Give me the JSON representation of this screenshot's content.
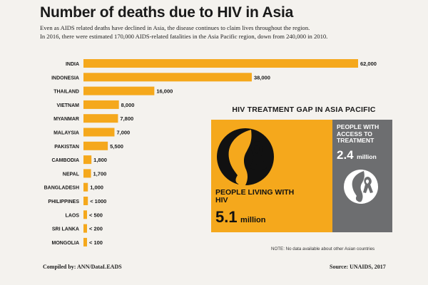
{
  "title": "Number of deaths due to HIV in Asia",
  "subtitle_line1": "Even as AIDS related deaths have declined in Asia, the disease continues to claim lives throughout the region.",
  "subtitle_line2": "In 2016, there were estimated 170,000 AIDS-related fatalities in the Asia Pacific region, down from 240,000 in 2010.",
  "colors": {
    "bar": "#f5a81c",
    "gray_box": "#6d6e70"
  },
  "chart_data": {
    "type": "bar",
    "orientation": "horizontal",
    "categories": [
      "INDIA",
      "INDONESIA",
      "THAILAND",
      "VIETNAM",
      "MYANMAR",
      "MALAYSIA",
      "PAKISTAN",
      "CAMBODIA",
      "NEPAL",
      "BANGLADESH",
      "PHILIPPINES",
      "LAOS",
      "SRI LANKA",
      "MONGOLIA"
    ],
    "values": [
      62000,
      38000,
      16000,
      8000,
      7800,
      7000,
      5500,
      1800,
      1700,
      1000,
      1000,
      500,
      200,
      100
    ],
    "labels": [
      "62,000",
      "38,000",
      "16,000",
      "8,000",
      "7,800",
      "7,000",
      "5,500",
      "1,800",
      "1,700",
      "1,000",
      "< 1000",
      "< 500",
      "< 200",
      "< 100"
    ],
    "xlim": [
      0,
      62000
    ],
    "grid": false
  },
  "gap": {
    "title": "HIV TREATMENT GAP IN ASIA PACIFIC",
    "plwh_label": "PEOPLE LIVING WITH HIV",
    "plwh_value": "5.1",
    "plwh_unit": "million",
    "access_label": "PEOPLE WITH ACCESS TO TREATMENT",
    "access_value": "2.4",
    "access_unit": "million",
    "icon": "ribbon-face-icon"
  },
  "note": "NOTE: No data available about other Asian countries",
  "compiled_by": "Compiled by: ANN/DataLEADS",
  "source": "Source: UNAIDS, 2017"
}
